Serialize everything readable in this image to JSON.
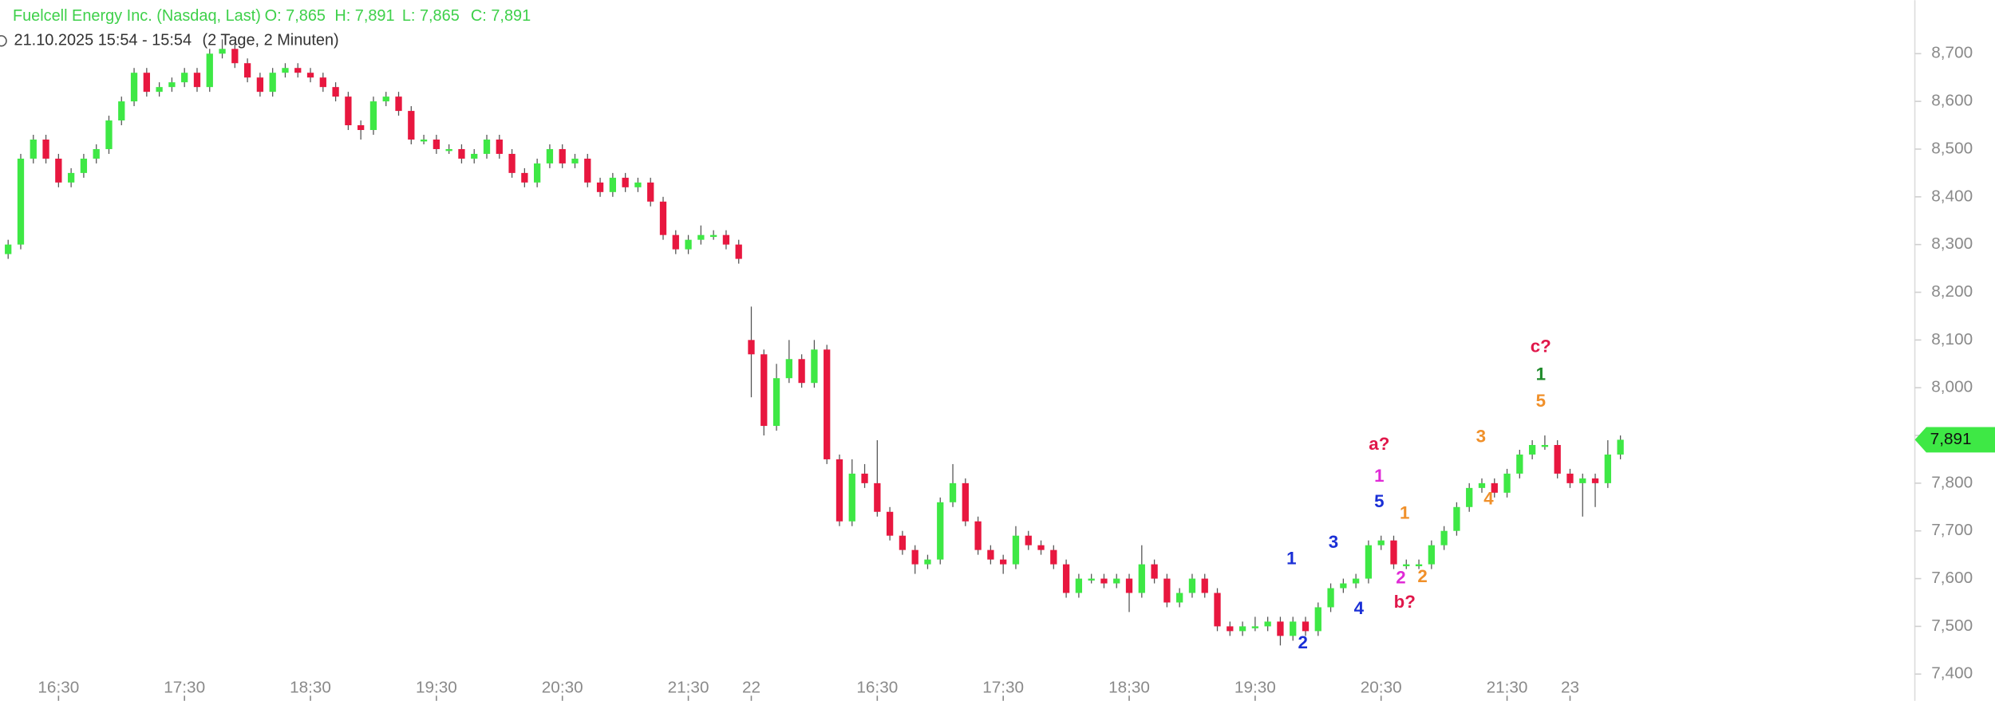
{
  "chart_data": {
    "type": "candlestick",
    "title": "Fuelcell Energy Inc. (Nasdaq, Last)",
    "header": {
      "open_label": "O: 7,865",
      "high_label": "H: 7,891",
      "low_label": "L: 7,865",
      "close_label": "C: 7,891",
      "time": "21.10.2025 15:54 - 15:54",
      "period": "(2 Tage, 2 Minuten)"
    },
    "up_color": "#3ee845",
    "down_color": "#e8173f",
    "categories": [
      null,
      null,
      null,
      null,
      "16:30",
      null,
      null,
      null,
      null,
      null,
      null,
      null,
      null,
      null,
      "17:30",
      null,
      null,
      null,
      null,
      null,
      null,
      null,
      null,
      null,
      "18:30",
      null,
      null,
      null,
      null,
      null,
      null,
      null,
      null,
      null,
      "19:30",
      null,
      null,
      null,
      null,
      null,
      null,
      null,
      null,
      null,
      "20:30",
      null,
      null,
      null,
      null,
      null,
      null,
      null,
      null,
      null,
      "21:30",
      null,
      null,
      null,
      null,
      "22",
      null,
      null,
      null,
      null,
      null,
      null,
      null,
      null,
      null,
      "16:30",
      null,
      null,
      null,
      null,
      null,
      null,
      null,
      null,
      null,
      "17:30",
      null,
      null,
      null,
      null,
      null,
      null,
      null,
      null,
      null,
      "18:30",
      null,
      null,
      null,
      null,
      null,
      null,
      null,
      null,
      null,
      "19:30",
      null,
      null,
      null,
      null,
      null,
      null,
      null,
      null,
      null,
      "20:30",
      null,
      null,
      null,
      null,
      null,
      null,
      null,
      null,
      null,
      "21:30",
      null,
      null,
      null,
      null,
      "23",
      null,
      null,
      null,
      null
    ],
    "open": [
      8.28,
      8.3,
      8.48,
      8.52,
      8.48,
      8.43,
      8.45,
      8.48,
      8.5,
      8.56,
      8.6,
      8.66,
      8.62,
      8.63,
      8.64,
      8.66,
      8.63,
      8.7,
      8.71,
      8.68,
      8.65,
      8.62,
      8.66,
      8.67,
      8.66,
      8.65,
      8.63,
      8.61,
      8.55,
      8.54,
      8.6,
      8.61,
      8.58,
      8.52,
      8.52,
      8.5,
      8.5,
      8.48,
      8.49,
      8.52,
      8.49,
      8.45,
      8.43,
      8.47,
      8.5,
      8.47,
      8.48,
      8.43,
      8.41,
      8.44,
      8.42,
      8.43,
      8.39,
      8.32,
      8.29,
      8.31,
      8.32,
      8.32,
      8.3,
      8.1,
      8.07,
      7.92,
      8.02,
      8.06,
      8.01,
      8.08,
      7.85,
      7.72,
      7.82,
      7.8,
      7.74,
      7.69,
      7.66,
      7.63,
      7.64,
      7.76,
      7.8,
      7.72,
      7.66,
      7.64,
      7.63,
      7.69,
      7.67,
      7.66,
      7.63,
      7.57,
      7.6,
      7.6,
      7.59,
      7.6,
      7.57,
      7.63,
      7.6,
      7.55,
      7.57,
      7.6,
      7.57,
      7.5,
      7.49,
      7.5,
      7.5,
      7.51,
      7.48,
      7.51,
      7.49,
      7.54,
      7.58,
      7.59,
      7.6,
      7.67,
      7.68,
      7.63,
      7.63,
      7.63,
      7.67,
      7.7,
      7.75,
      7.79,
      7.8,
      7.78,
      7.82,
      7.86,
      7.88,
      7.88,
      7.82,
      7.8,
      7.81,
      7.8,
      7.86
    ],
    "high": [
      8.31,
      8.49,
      8.53,
      8.53,
      8.49,
      8.46,
      8.49,
      8.51,
      8.57,
      8.61,
      8.67,
      8.67,
      8.64,
      8.65,
      8.67,
      8.67,
      8.71,
      8.73,
      8.72,
      8.69,
      8.66,
      8.67,
      8.68,
      8.68,
      8.67,
      8.66,
      8.64,
      8.62,
      8.56,
      8.61,
      8.62,
      8.62,
      8.59,
      8.53,
      8.53,
      8.51,
      8.51,
      8.5,
      8.53,
      8.53,
      8.5,
      8.46,
      8.48,
      8.51,
      8.51,
      8.49,
      8.49,
      8.44,
      8.45,
      8.45,
      8.44,
      8.44,
      8.4,
      8.33,
      8.32,
      8.34,
      8.33,
      8.33,
      8.31,
      8.17,
      8.08,
      8.05,
      8.1,
      8.07,
      8.1,
      8.09,
      7.86,
      7.85,
      7.84,
      7.89,
      7.75,
      7.7,
      7.67,
      7.65,
      7.77,
      7.84,
      7.81,
      7.73,
      7.67,
      7.65,
      7.71,
      7.7,
      7.68,
      7.67,
      7.64,
      7.61,
      7.61,
      7.61,
      7.61,
      7.61,
      7.67,
      7.64,
      7.61,
      7.58,
      7.61,
      7.61,
      7.58,
      7.51,
      7.51,
      7.52,
      7.52,
      7.52,
      7.52,
      7.52,
      7.55,
      7.59,
      7.6,
      7.61,
      7.68,
      7.69,
      7.69,
      7.64,
      7.64,
      7.68,
      7.71,
      7.76,
      7.8,
      7.81,
      7.81,
      7.83,
      7.87,
      7.89,
      7.9,
      7.89,
      7.83,
      7.82,
      7.82,
      7.89,
      7.9
    ],
    "low": [
      8.27,
      8.29,
      8.47,
      8.47,
      8.42,
      8.42,
      8.44,
      8.47,
      8.49,
      8.55,
      8.59,
      8.61,
      8.61,
      8.62,
      8.63,
      8.62,
      8.62,
      8.69,
      8.67,
      8.64,
      8.61,
      8.61,
      8.65,
      8.65,
      8.64,
      8.62,
      8.6,
      8.54,
      8.52,
      8.53,
      8.59,
      8.57,
      8.51,
      8.51,
      8.49,
      8.49,
      8.47,
      8.47,
      8.48,
      8.48,
      8.44,
      8.42,
      8.42,
      8.46,
      8.46,
      8.46,
      8.42,
      8.4,
      8.4,
      8.41,
      8.41,
      8.38,
      8.31,
      8.28,
      8.28,
      8.3,
      8.31,
      8.29,
      8.26,
      7.98,
      7.9,
      7.91,
      8.01,
      8.0,
      8.0,
      7.84,
      7.71,
      7.71,
      7.79,
      7.73,
      7.68,
      7.65,
      7.61,
      7.62,
      7.63,
      7.75,
      7.71,
      7.65,
      7.63,
      7.61,
      7.62,
      7.66,
      7.65,
      7.62,
      7.56,
      7.56,
      7.59,
      7.58,
      7.58,
      7.53,
      7.56,
      7.59,
      7.54,
      7.54,
      7.56,
      7.56,
      7.49,
      7.48,
      7.48,
      7.49,
      7.49,
      7.46,
      7.47,
      7.48,
      7.48,
      7.53,
      7.57,
      7.58,
      7.59,
      7.66,
      7.62,
      7.62,
      7.62,
      7.62,
      7.66,
      7.69,
      7.74,
      7.78,
      7.77,
      7.77,
      7.81,
      7.85,
      7.87,
      7.81,
      7.79,
      7.73,
      7.75,
      7.79,
      7.85
    ],
    "close": [
      8.3,
      8.48,
      8.52,
      8.48,
      8.43,
      8.45,
      8.48,
      8.5,
      8.56,
      8.6,
      8.66,
      8.62,
      8.63,
      8.64,
      8.66,
      8.63,
      8.7,
      8.71,
      8.68,
      8.65,
      8.62,
      8.66,
      8.67,
      8.66,
      8.65,
      8.63,
      8.61,
      8.55,
      8.54,
      8.6,
      8.61,
      8.58,
      8.52,
      8.52,
      8.5,
      8.5,
      8.48,
      8.49,
      8.52,
      8.49,
      8.45,
      8.43,
      8.47,
      8.5,
      8.47,
      8.48,
      8.43,
      8.41,
      8.44,
      8.42,
      8.43,
      8.39,
      8.32,
      8.29,
      8.31,
      8.32,
      8.32,
      8.3,
      8.27,
      8.07,
      7.92,
      8.02,
      8.06,
      8.01,
      8.08,
      7.85,
      7.72,
      7.82,
      7.8,
      7.74,
      7.69,
      7.66,
      7.63,
      7.64,
      7.76,
      7.8,
      7.72,
      7.66,
      7.64,
      7.63,
      7.69,
      7.67,
      7.66,
      7.63,
      7.57,
      7.6,
      7.6,
      7.59,
      7.6,
      7.57,
      7.63,
      7.6,
      7.55,
      7.57,
      7.6,
      7.57,
      7.5,
      7.49,
      7.5,
      7.5,
      7.51,
      7.48,
      7.51,
      7.49,
      7.54,
      7.58,
      7.59,
      7.6,
      7.67,
      7.68,
      7.63,
      7.63,
      7.63,
      7.67,
      7.7,
      7.75,
      7.79,
      7.8,
      7.78,
      7.82,
      7.86,
      7.88,
      7.88,
      7.82,
      7.8,
      7.81,
      7.8,
      7.86,
      7.891
    ],
    "last_price": {
      "value": 7.891,
      "label": "7,891"
    },
    "ylim": [
      7.344,
      8.812
    ],
    "yticks": [
      {
        "value": 7.4,
        "label": "7,400"
      },
      {
        "value": 7.5,
        "label": "7,500"
      },
      {
        "value": 7.6,
        "label": "7,600"
      },
      {
        "value": 7.7,
        "label": "7,700"
      },
      {
        "value": 7.8,
        "label": "7,800"
      },
      {
        "value": 7.9,
        "label": "7,900"
      },
      {
        "value": 8.0,
        "label": "8,000"
      },
      {
        "value": 8.1,
        "label": "8,100"
      },
      {
        "value": 8.2,
        "label": "8,200"
      },
      {
        "value": 8.3,
        "label": "8,300"
      },
      {
        "value": 8.4,
        "label": "8,400"
      },
      {
        "value": 8.5,
        "label": "8,500"
      },
      {
        "value": 8.6,
        "label": "8,600"
      },
      {
        "value": 8.7,
        "label": "8,700"
      }
    ],
    "annotations": [
      {
        "text": "1",
        "color": "#1a2fd6"
      },
      {
        "text": "2",
        "color": "#1a2fd6"
      },
      {
        "text": "3",
        "color": "#1a2fd6"
      },
      {
        "text": "4",
        "color": "#1a2fd6"
      },
      {
        "text": "5",
        "color": "#1a2fd6"
      },
      {
        "text": "a?",
        "color": "#e0174a"
      },
      {
        "text": "1",
        "color": "#e02ad6"
      },
      {
        "text": "2",
        "color": "#e02ad6"
      },
      {
        "text": "b?",
        "color": "#e0174a"
      },
      {
        "text": "1",
        "color": "#f0902a"
      },
      {
        "text": "2",
        "color": "#f0902a"
      },
      {
        "text": "3",
        "color": "#f0902a"
      },
      {
        "text": "4",
        "color": "#f0902a"
      },
      {
        "text": "5",
        "color": "#f0902a"
      },
      {
        "text": "1",
        "color": "#1e8a2a"
      },
      {
        "text": "c?",
        "color": "#e0174a"
      }
    ]
  }
}
